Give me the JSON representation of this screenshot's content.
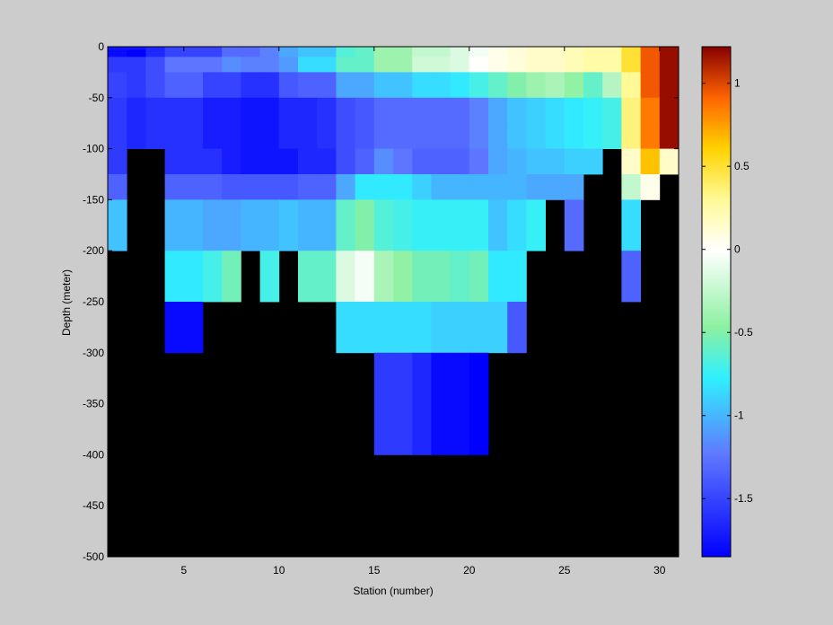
{
  "chart_data": {
    "type": "heatmap",
    "title": "",
    "xlabel": "Station (number)",
    "ylabel": "Depth (meter)",
    "xlim": [
      1,
      31
    ],
    "ylim": [
      -500,
      0
    ],
    "x_ticks": [
      5,
      10,
      15,
      20,
      25,
      30
    ],
    "y_ticks": [
      0,
      -50,
      -100,
      -150,
      -200,
      -250,
      -300,
      -350,
      -400,
      -450,
      -500
    ],
    "missing_color": "#000000",
    "colorbar": {
      "clim": [
        -1.85,
        1.22
      ],
      "ticks": [
        1,
        0.5,
        0,
        -0.5,
        -1,
        -1.5
      ],
      "colormap": "jet-white",
      "stops": [
        {
          "v": 0,
          "c": "#0000ff"
        },
        {
          "v": 0.2,
          "c": "#5f78ff"
        },
        {
          "v": 0.35,
          "c": "#2ff0ff"
        },
        {
          "v": 0.45,
          "c": "#8cf0a0"
        },
        {
          "v": 0.6,
          "c": "#ffffff"
        },
        {
          "v": 0.7,
          "c": "#fffa96"
        },
        {
          "v": 0.8,
          "c": "#ffd200"
        },
        {
          "v": 0.9,
          "c": "#ff6400"
        },
        {
          "v": 1,
          "c": "#870000"
        }
      ]
    },
    "depth_bins": [
      [
        0,
        -3
      ],
      [
        -3,
        -10
      ],
      [
        -10,
        -25
      ],
      [
        -25,
        -50
      ],
      [
        -50,
        -75
      ],
      [
        -75,
        -100
      ],
      [
        -100,
        -125
      ],
      [
        -125,
        -150
      ],
      [
        -150,
        -200
      ],
      [
        -200,
        -250
      ],
      [
        -250,
        -300
      ],
      [
        -300,
        -400
      ]
    ],
    "stations": [
      1,
      2,
      3,
      4,
      5,
      6,
      7,
      8,
      9,
      10,
      11,
      12,
      13,
      14,
      15,
      16,
      17,
      18,
      19,
      20,
      21,
      22,
      23,
      24,
      25,
      26,
      27,
      28,
      29,
      30
    ],
    "values": [
      [
        -1.75,
        -1.75,
        -1.65,
        -1.5,
        -1.5,
        -1.5,
        -1.3,
        -1.3,
        -1.2,
        -1.05,
        -0.95,
        -0.95,
        -0.65,
        -0.6,
        -0.4,
        -0.4,
        -0.25,
        -0.25,
        -0.15,
        -0.05,
        0.05,
        0.1,
        0.15,
        0.15,
        0.2,
        0.25,
        0.25,
        0.5,
        0.95,
        1.18
      ],
      [
        -1.8,
        -1.85,
        -1.65,
        -1.5,
        -1.5,
        -1.5,
        -1.3,
        -1.3,
        -1.2,
        -1.05,
        -0.95,
        -0.95,
        -0.65,
        -0.6,
        -0.4,
        -0.4,
        -0.25,
        -0.25,
        -0.15,
        -0.05,
        0.05,
        0.1,
        0.15,
        0.15,
        0.2,
        0.25,
        0.25,
        0.5,
        0.95,
        1.18
      ],
      [
        -1.55,
        -1.55,
        -1.45,
        -1.25,
        -1.25,
        -1.25,
        -1.15,
        -1.2,
        -1.2,
        -1.1,
        -0.85,
        -0.85,
        -0.6,
        -0.6,
        -0.4,
        -0.4,
        -0.2,
        -0.2,
        -0.15,
        0.0,
        0.05,
        0.1,
        0.15,
        0.15,
        0.2,
        0.25,
        0.25,
        0.5,
        0.95,
        1.18
      ],
      [
        -1.5,
        -1.55,
        -1.45,
        -1.35,
        -1.35,
        -1.5,
        -1.5,
        -1.6,
        -1.6,
        -1.4,
        -1.35,
        -1.35,
        -1.05,
        -1.05,
        -0.95,
        -0.95,
        -0.85,
        -0.85,
        -0.8,
        -0.7,
        -0.6,
        -0.5,
        -0.4,
        -0.35,
        -0.45,
        -0.6,
        -0.3,
        0.3,
        0.95,
        1.18
      ],
      [
        -1.55,
        -1.65,
        -1.6,
        -1.6,
        -1.6,
        -1.7,
        -1.7,
        -1.75,
        -1.75,
        -1.65,
        -1.65,
        -1.6,
        -1.45,
        -1.4,
        -1.3,
        -1.3,
        -1.3,
        -1.3,
        -1.3,
        -1.2,
        -1.05,
        -0.95,
        -0.9,
        -0.85,
        -0.8,
        -0.75,
        -0.7,
        0.35,
        0.85,
        1.18
      ],
      [
        -1.55,
        -1.65,
        -1.6,
        -1.6,
        -1.6,
        -1.7,
        -1.7,
        -1.75,
        -1.75,
        -1.65,
        -1.65,
        -1.6,
        -1.45,
        -1.4,
        -1.3,
        -1.3,
        -1.3,
        -1.3,
        -1.3,
        -1.2,
        -1.05,
        -0.95,
        -0.9,
        -0.85,
        -0.8,
        -0.75,
        -0.7,
        0.35,
        0.85,
        1.18
      ],
      [
        -1.55,
        null,
        null,
        -1.6,
        -1.6,
        -1.6,
        -1.7,
        -1.75,
        -1.75,
        -1.75,
        -1.65,
        -1.65,
        -1.45,
        -1.35,
        -1.15,
        -1.25,
        -1.35,
        -1.35,
        -1.35,
        -1.25,
        -1.05,
        -1.0,
        -0.95,
        -0.95,
        -0.9,
        -0.9,
        null,
        0.15,
        0.65,
        0.15
      ],
      [
        -1.35,
        null,
        null,
        -1.35,
        -1.35,
        -1.35,
        -1.4,
        -1.4,
        -1.4,
        -1.4,
        -1.35,
        -1.35,
        -1.05,
        -0.8,
        -0.8,
        -0.8,
        -0.9,
        -1.0,
        -1.0,
        -1.0,
        -1.0,
        -1.0,
        -1.05,
        -1.05,
        -1.05,
        null,
        null,
        -0.25,
        0.05,
        null
      ],
      [
        -0.95,
        null,
        null,
        -1.0,
        -1.0,
        -1.05,
        -1.05,
        -1.0,
        -1.0,
        -0.95,
        -1.0,
        -1.0,
        -0.6,
        -0.5,
        -0.65,
        -0.7,
        -0.75,
        -0.75,
        -0.75,
        -0.75,
        -0.95,
        -0.85,
        -0.75,
        null,
        -1.3,
        null,
        null,
        -0.85,
        null,
        null
      ],
      [
        null,
        null,
        null,
        -0.8,
        -0.8,
        -0.7,
        -0.55,
        null,
        -0.7,
        null,
        -0.6,
        -0.6,
        -0.15,
        -0.05,
        -0.35,
        -0.45,
        -0.55,
        -0.55,
        -0.6,
        -0.55,
        -0.8,
        -0.8,
        null,
        null,
        null,
        null,
        null,
        -1.35,
        null,
        null
      ],
      [
        null,
        null,
        null,
        -1.8,
        -1.8,
        null,
        null,
        null,
        null,
        null,
        null,
        null,
        -0.85,
        -0.85,
        -0.85,
        -0.85,
        -0.85,
        -0.9,
        -0.9,
        -0.9,
        -0.9,
        -1.4,
        null,
        null,
        null,
        null,
        null,
        null,
        null,
        null
      ],
      [
        null,
        null,
        null,
        null,
        null,
        null,
        null,
        null,
        null,
        null,
        null,
        null,
        null,
        null,
        -1.55,
        -1.55,
        -1.65,
        -1.8,
        -1.8,
        -1.85,
        null,
        null,
        null,
        null,
        null,
        null,
        null,
        null,
        null,
        null
      ]
    ]
  }
}
